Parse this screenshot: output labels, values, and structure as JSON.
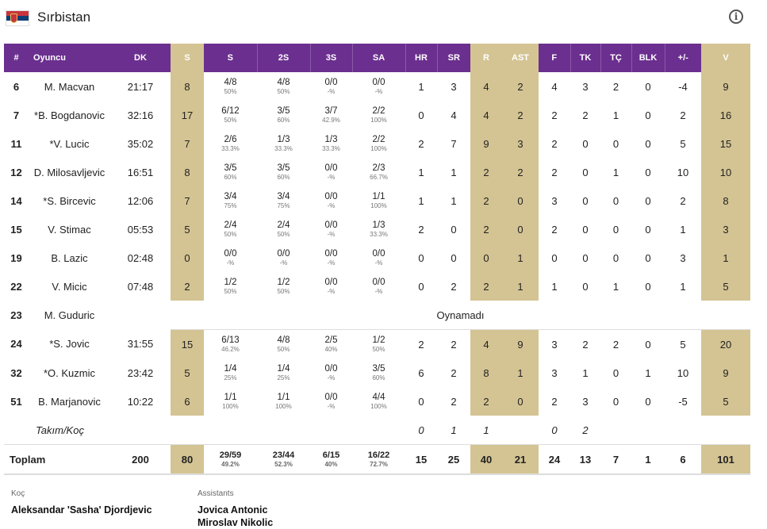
{
  "team": {
    "name": "Sırbistan",
    "flag_colors": [
      "#c6363c",
      "#0c4076",
      "#ffffff"
    ]
  },
  "columns": [
    "#",
    "Oyuncu",
    "DK",
    "S",
    "S",
    "2S",
    "3S",
    "SA",
    "HR",
    "SR",
    "R",
    "AST",
    "F",
    "TK",
    "TÇ",
    "BLK",
    "+/-",
    "V"
  ],
  "players": [
    {
      "no": "6",
      "name": "M. Macvan",
      "dk": "21:17",
      "s": "8",
      "fg": "4/8",
      "fg_pct": "50%",
      "two": "4/8",
      "two_pct": "50%",
      "three": "0/0",
      "three_pct": "-%",
      "ft": "0/0",
      "ft_pct": "-%",
      "hr": "1",
      "sr": "3",
      "r": "4",
      "ast": "2",
      "f": "4",
      "tk": "3",
      "tc": "2",
      "blk": "0",
      "pm": "-4",
      "v": "9"
    },
    {
      "no": "7",
      "name": "*B. Bogdanovic",
      "dk": "32:16",
      "s": "17",
      "fg": "6/12",
      "fg_pct": "50%",
      "two": "3/5",
      "two_pct": "60%",
      "three": "3/7",
      "three_pct": "42.9%",
      "ft": "2/2",
      "ft_pct": "100%",
      "hr": "0",
      "sr": "4",
      "r": "4",
      "ast": "2",
      "f": "2",
      "tk": "2",
      "tc": "1",
      "blk": "0",
      "pm": "2",
      "v": "16"
    },
    {
      "no": "11",
      "name": "*V. Lucic",
      "dk": "35:02",
      "s": "7",
      "fg": "2/6",
      "fg_pct": "33.3%",
      "two": "1/3",
      "two_pct": "33.3%",
      "three": "1/3",
      "three_pct": "33.3%",
      "ft": "2/2",
      "ft_pct": "100%",
      "hr": "2",
      "sr": "7",
      "r": "9",
      "ast": "3",
      "f": "2",
      "tk": "0",
      "tc": "0",
      "blk": "0",
      "pm": "5",
      "v": "15"
    },
    {
      "no": "12",
      "name": "D. Milosavljevic",
      "dk": "16:51",
      "s": "8",
      "fg": "3/5",
      "fg_pct": "60%",
      "two": "3/5",
      "two_pct": "60%",
      "three": "0/0",
      "three_pct": "-%",
      "ft": "2/3",
      "ft_pct": "66.7%",
      "hr": "1",
      "sr": "1",
      "r": "2",
      "ast": "2",
      "f": "2",
      "tk": "0",
      "tc": "1",
      "blk": "0",
      "pm": "10",
      "v": "10"
    },
    {
      "no": "14",
      "name": "*S. Bircevic",
      "dk": "12:06",
      "s": "7",
      "fg": "3/4",
      "fg_pct": "75%",
      "two": "3/4",
      "two_pct": "75%",
      "three": "0/0",
      "three_pct": "-%",
      "ft": "1/1",
      "ft_pct": "100%",
      "hr": "1",
      "sr": "1",
      "r": "2",
      "ast": "0",
      "f": "3",
      "tk": "0",
      "tc": "0",
      "blk": "0",
      "pm": "2",
      "v": "8"
    },
    {
      "no": "15",
      "name": "V. Stimac",
      "dk": "05:53",
      "s": "5",
      "fg": "2/4",
      "fg_pct": "50%",
      "two": "2/4",
      "two_pct": "50%",
      "three": "0/0",
      "three_pct": "-%",
      "ft": "1/3",
      "ft_pct": "33.3%",
      "hr": "2",
      "sr": "0",
      "r": "2",
      "ast": "0",
      "f": "2",
      "tk": "0",
      "tc": "0",
      "blk": "0",
      "pm": "1",
      "v": "3"
    },
    {
      "no": "19",
      "name": "B. Lazic",
      "dk": "02:48",
      "s": "0",
      "fg": "0/0",
      "fg_pct": "-%",
      "two": "0/0",
      "two_pct": "-%",
      "three": "0/0",
      "three_pct": "-%",
      "ft": "0/0",
      "ft_pct": "-%",
      "hr": "0",
      "sr": "0",
      "r": "0",
      "ast": "1",
      "f": "0",
      "tk": "0",
      "tc": "0",
      "blk": "0",
      "pm": "3",
      "v": "1"
    },
    {
      "no": "22",
      "name": "V. Micic",
      "dk": "07:48",
      "s": "2",
      "fg": "1/2",
      "fg_pct": "50%",
      "two": "1/2",
      "two_pct": "50%",
      "three": "0/0",
      "three_pct": "-%",
      "ft": "0/0",
      "ft_pct": "-%",
      "hr": "0",
      "sr": "2",
      "r": "2",
      "ast": "1",
      "f": "1",
      "tk": "0",
      "tc": "1",
      "blk": "0",
      "pm": "1",
      "v": "5"
    },
    {
      "no": "23",
      "name": "M. Guduric",
      "dnp": "Oynamadı"
    },
    {
      "no": "24",
      "name": "*S. Jovic",
      "dk": "31:55",
      "s": "15",
      "fg": "6/13",
      "fg_pct": "46.2%",
      "two": "4/8",
      "two_pct": "50%",
      "three": "2/5",
      "three_pct": "40%",
      "ft": "1/2",
      "ft_pct": "50%",
      "hr": "2",
      "sr": "2",
      "r": "4",
      "ast": "9",
      "f": "3",
      "tk": "2",
      "tc": "2",
      "blk": "0",
      "pm": "5",
      "v": "20"
    },
    {
      "no": "32",
      "name": "*O. Kuzmic",
      "dk": "23:42",
      "s": "5",
      "fg": "1/4",
      "fg_pct": "25%",
      "two": "1/4",
      "two_pct": "25%",
      "three": "0/0",
      "three_pct": "-%",
      "ft": "3/5",
      "ft_pct": "60%",
      "hr": "6",
      "sr": "2",
      "r": "8",
      "ast": "1",
      "f": "3",
      "tk": "1",
      "tc": "0",
      "blk": "1",
      "pm": "10",
      "v": "9"
    },
    {
      "no": "51",
      "name": "B. Marjanovic",
      "dk": "10:22",
      "s": "6",
      "fg": "1/1",
      "fg_pct": "100%",
      "two": "1/1",
      "two_pct": "100%",
      "three": "0/0",
      "three_pct": "-%",
      "ft": "4/4",
      "ft_pct": "100%",
      "hr": "0",
      "sr": "2",
      "r": "2",
      "ast": "0",
      "f": "2",
      "tk": "3",
      "tc": "0",
      "blk": "0",
      "pm": "-5",
      "v": "5"
    }
  ],
  "team_row": {
    "label": "Takım/Koç",
    "hr": "0",
    "sr": "1",
    "r": "1",
    "f": "0",
    "tk": "2"
  },
  "totals": {
    "label": "Toplam",
    "dk": "200",
    "s": "80",
    "fg": "29/59",
    "fg_pct": "49.2%",
    "two": "23/44",
    "two_pct": "52.3%",
    "three": "6/15",
    "three_pct": "40%",
    "ft": "16/22",
    "ft_pct": "72.7%",
    "hr": "15",
    "sr": "25",
    "r": "40",
    "ast": "21",
    "f": "24",
    "tk": "13",
    "tc": "7",
    "blk": "1",
    "pm": "6",
    "v": "101"
  },
  "staff": {
    "coach_label": "Koç",
    "coach": "Aleksandar 'Sasha' Djordjevic",
    "assistants_label": "Assistants",
    "assistants": [
      "Jovica Antonic",
      "Miroslav Nikolic"
    ]
  }
}
